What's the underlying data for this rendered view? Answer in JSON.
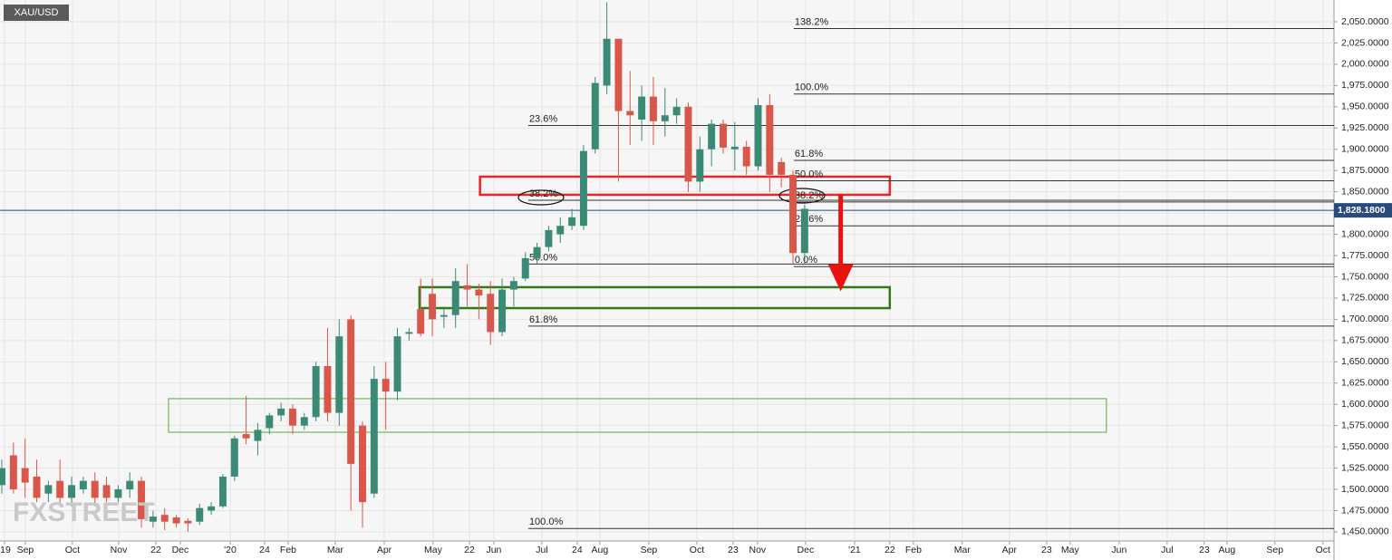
{
  "chart_data": {
    "type": "candlestick",
    "symbol": "XAU/USD",
    "watermark": "FXSTREET",
    "colors": {
      "up": "#3b8a75",
      "down": "#d9574a"
    },
    "grid": true,
    "xlim": [
      -0.156,
      114.5
    ],
    "ylim": [
      1439.3,
      2075.6
    ],
    "yticks": [
      {
        "value": 1450,
        "label": "1,450.0000"
      },
      {
        "value": 1475,
        "label": "1,475.0000"
      },
      {
        "value": 1500,
        "label": "1,500.0000"
      },
      {
        "value": 1525,
        "label": "1,525.0000"
      },
      {
        "value": 1550,
        "label": "1,550.0000"
      },
      {
        "value": 1575,
        "label": "1,575.0000"
      },
      {
        "value": 1600,
        "label": "1,600.0000"
      },
      {
        "value": 1625,
        "label": "1,625.0000"
      },
      {
        "value": 1650,
        "label": "1,650.0000"
      },
      {
        "value": 1675,
        "label": "1,675.0000"
      },
      {
        "value": 1700,
        "label": "1,700.0000"
      },
      {
        "value": 1725,
        "label": "1,725.0000"
      },
      {
        "value": 1750,
        "label": "1,750.0000"
      },
      {
        "value": 1775,
        "label": "1,775.0000"
      },
      {
        "value": 1800,
        "label": "1,800.0000"
      },
      {
        "value": 1825,
        "label": "1,825.0000"
      },
      {
        "value": 1850,
        "label": "1,850.0000"
      },
      {
        "value": 1875,
        "label": "1,875.0000"
      },
      {
        "value": 1900,
        "label": "1,900.0000"
      },
      {
        "value": 1925,
        "label": "1,925.0000"
      },
      {
        "value": 1950,
        "label": "1,950.0000"
      },
      {
        "value": 1975,
        "label": "1,975.0000"
      },
      {
        "value": 2000,
        "label": "2,000.0000"
      },
      {
        "value": 2025,
        "label": "2,025.0000"
      },
      {
        "value": 2050,
        "label": "2,050.0000"
      }
    ],
    "xticks": [
      {
        "value": 0.23,
        "label": "'19"
      },
      {
        "value": 2.02,
        "label": "Sep"
      },
      {
        "value": 6.07,
        "label": "Oct"
      },
      {
        "value": 10.05,
        "label": "Nov"
      },
      {
        "value": 13.24,
        "label": "22"
      },
      {
        "value": 15.34,
        "label": "Dec"
      },
      {
        "value": 19.63,
        "label": "'20"
      },
      {
        "value": 22.59,
        "label": "24"
      },
      {
        "value": 24.61,
        "label": "Feb"
      },
      {
        "value": 28.66,
        "label": "Mar"
      },
      {
        "value": 32.87,
        "label": "Apr"
      },
      {
        "value": 37.07,
        "label": "May"
      },
      {
        "value": 40.19,
        "label": "22"
      },
      {
        "value": 42.29,
        "label": "Jun"
      },
      {
        "value": 46.42,
        "label": "Jul"
      },
      {
        "value": 49.45,
        "label": "24"
      },
      {
        "value": 51.4,
        "label": "Aug"
      },
      {
        "value": 55.61,
        "label": "Sep"
      },
      {
        "value": 59.74,
        "label": "Oct"
      },
      {
        "value": 62.85,
        "label": "23"
      },
      {
        "value": 64.95,
        "label": "Nov"
      },
      {
        "value": 69.08,
        "label": "Dec"
      },
      {
        "value": 73.29,
        "label": "'21"
      },
      {
        "value": 76.32,
        "label": "22"
      },
      {
        "value": 78.35,
        "label": "Feb"
      },
      {
        "value": 82.55,
        "label": "Mar"
      },
      {
        "value": 86.6,
        "label": "Apr"
      },
      {
        "value": 89.8,
        "label": "23"
      },
      {
        "value": 91.82,
        "label": "May"
      },
      {
        "value": 96.03,
        "label": "Jun"
      },
      {
        "value": 100.16,
        "label": "Jul"
      },
      {
        "value": 103.35,
        "label": "23"
      },
      {
        "value": 105.3,
        "label": "Aug"
      },
      {
        "value": 109.42,
        "label": "Sep"
      },
      {
        "value": 113.55,
        "label": "Oct"
      }
    ],
    "open": [
      1505,
      1540,
      1525,
      1515,
      1495,
      1510,
      1490,
      1500,
      1510,
      1505,
      1490,
      1500,
      1510,
      1462,
      1470,
      1467,
      1463,
      1462,
      1475,
      1480,
      1515,
      1565,
      1557,
      1572,
      1587,
      1595,
      1575,
      1585,
      1645,
      1590,
      1700,
      1575,
      1495,
      1630,
      1615,
      1683,
      1712,
      1730,
      1703,
      1705,
      1740,
      1735,
      1730,
      1685,
      1735,
      1748,
      1772,
      1785,
      1800,
      1810,
      1810,
      1900,
      1975,
      2030,
      1945,
      1935,
      1962,
      1933,
      1940,
      1950,
      1862,
      1900,
      1930,
      1900,
      1903,
      1880,
      1952,
      1885,
      1870,
      1778
    ],
    "high": [
      1535,
      1555,
      1560,
      1535,
      1510,
      1535,
      1515,
      1515,
      1520,
      1515,
      1505,
      1520,
      1515,
      1475,
      1478,
      1470,
      1466,
      1483,
      1485,
      1518,
      1563,
      1610,
      1578,
      1590,
      1602,
      1600,
      1590,
      1650,
      1690,
      1700,
      1705,
      1580,
      1645,
      1650,
      1690,
      1690,
      1748,
      1748,
      1715,
      1760,
      1765,
      1742,
      1745,
      1748,
      1750,
      1779,
      1790,
      1810,
      1820,
      1830,
      1905,
      1985,
      2073,
      2030,
      1992,
      1975,
      1985,
      1972,
      1960,
      1955,
      1915,
      1935,
      1935,
      1932,
      1910,
      1960,
      1965,
      1890,
      1875,
      1835
    ],
    "low": [
      1495,
      1495,
      1490,
      1485,
      1485,
      1480,
      1480,
      1495,
      1480,
      1485,
      1485,
      1490,
      1455,
      1455,
      1452,
      1455,
      1450,
      1458,
      1470,
      1478,
      1510,
      1553,
      1540,
      1565,
      1580,
      1565,
      1570,
      1580,
      1580,
      1575,
      1475,
      1455,
      1490,
      1570,
      1605,
      1675,
      1680,
      1680,
      1690,
      1690,
      1715,
      1700,
      1670,
      1680,
      1715,
      1745,
      1765,
      1780,
      1790,
      1805,
      1805,
      1895,
      1965,
      1862,
      1905,
      1910,
      1905,
      1915,
      1930,
      1850,
      1850,
      1880,
      1895,
      1875,
      1870,
      1875,
      1850,
      1855,
      1765,
      1765
    ],
    "close": [
      1525,
      1500,
      1508,
      1490,
      1505,
      1490,
      1505,
      1510,
      1490,
      1490,
      1500,
      1510,
      1465,
      1468,
      1462,
      1460,
      1460,
      1478,
      1480,
      1515,
      1560,
      1560,
      1570,
      1587,
      1595,
      1575,
      1585,
      1645,
      1590,
      1680,
      1530,
      1485,
      1630,
      1615,
      1680,
      1685,
      1683,
      1700,
      1705,
      1745,
      1735,
      1728,
      1685,
      1735,
      1745,
      1772,
      1785,
      1805,
      1810,
      1820,
      1898,
      1978,
      2030,
      1945,
      1940,
      1962,
      1933,
      1940,
      1950,
      1862,
      1900,
      1930,
      1902,
      1903,
      1880,
      1952,
      1870,
      1870,
      1778,
      1830
    ],
    "last_price": {
      "value": 1828.18,
      "label": "1,828.1800"
    },
    "fib_sets": [
      {
        "from": 45.25,
        "levels": [
          {
            "label": "23.6%",
            "value": 1928
          },
          {
            "label": "38.2%",
            "value": 1840
          },
          {
            "label": "50.0%",
            "value": 1765
          },
          {
            "label": "61.8%",
            "value": 1692
          },
          {
            "label": "100.0%",
            "value": 1454
          }
        ]
      },
      {
        "from": 68.07,
        "levels": [
          {
            "label": "138.2%",
            "value": 2042
          },
          {
            "label": "100.0%",
            "value": 1965
          },
          {
            "label": "61.8%",
            "value": 1887
          },
          {
            "label": "50.0%",
            "value": 1863
          },
          {
            "label": "38.2%",
            "value": 1838
          },
          {
            "label": "23.6%",
            "value": 1810
          },
          {
            "label": "0.0%",
            "value": 1762
          }
        ]
      }
    ],
    "zones": [
      {
        "x": [
          41.1,
          76.32
        ],
        "y": [
          1846.5,
          1867.8
        ],
        "color": "#e8262a"
      },
      {
        "x": [
          35.9,
          76.32
        ],
        "y": [
          1713.2,
          1737.8
        ],
        "color": "#2e7d12"
      },
      {
        "x": [
          14.33,
          94.94
        ],
        "y": [
          1567.2,
          1606.7
        ],
        "color": "#5aa83a"
      }
    ],
    "arrow": {
      "x": 72.1,
      "from": 1846.5,
      "to": 1733,
      "color": "#e8120f"
    }
  }
}
